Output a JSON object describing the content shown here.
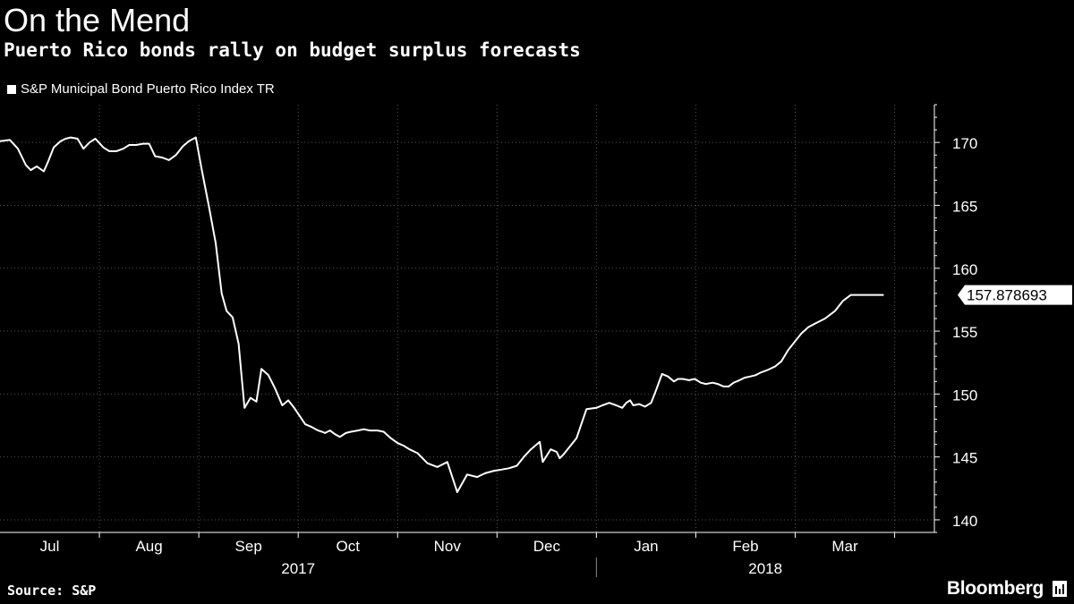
{
  "header": {
    "title": "On the Mend",
    "subtitle": "Puerto Rico bonds rally on budget surplus forecasts"
  },
  "legend": {
    "label": "S&P Municipal Bond Puerto Rico Index TR"
  },
  "footer": {
    "source": "Source: S&P",
    "brand": "Bloomberg",
    "brand_icon": "bloomberg-terminal-icon"
  },
  "colors": {
    "background": "#000000",
    "line": "#ffffff",
    "grid": "#555555",
    "text": "#ffffff"
  },
  "chart_data": {
    "type": "line",
    "title": "On the Mend",
    "subtitle": "Puerto Rico bonds rally on budget surplus forecasts",
    "series_name": "S&P Municipal Bond Puerto Rico Index TR",
    "xlabel": "",
    "ylabel": "",
    "ylim": [
      139,
      173
    ],
    "y_ticks": [
      140,
      145,
      150,
      155,
      160,
      165,
      170
    ],
    "grid": true,
    "x_range": [
      0,
      9.4
    ],
    "month_ticks": [
      {
        "label": "Jul",
        "pos": 0.5
      },
      {
        "label": "Aug",
        "pos": 1.5
      },
      {
        "label": "Sep",
        "pos": 2.5
      },
      {
        "label": "Oct",
        "pos": 3.5
      },
      {
        "label": "Nov",
        "pos": 4.5
      },
      {
        "label": "Dec",
        "pos": 5.5
      },
      {
        "label": "Jan",
        "pos": 6.5
      },
      {
        "label": "Feb",
        "pos": 7.5
      },
      {
        "label": "Mar",
        "pos": 8.5
      }
    ],
    "month_boundaries": [
      1,
      2,
      3,
      4,
      5,
      6,
      7,
      8,
      9
    ],
    "year_labels": [
      {
        "label": "2017",
        "pos": 3.0
      },
      {
        "label": "2018",
        "pos": 7.7
      }
    ],
    "year_divider": 6,
    "last_value_label": "157.878693",
    "x": [
      0.0,
      0.1,
      0.18,
      0.26,
      0.31,
      0.37,
      0.44,
      0.48,
      0.54,
      0.61,
      0.66,
      0.71,
      0.78,
      0.84,
      0.9,
      0.96,
      1.04,
      1.1,
      1.17,
      1.24,
      1.3,
      1.37,
      1.44,
      1.5,
      1.56,
      1.63,
      1.7,
      1.77,
      1.84,
      1.9,
      1.97,
      2.03,
      2.1,
      2.17,
      2.23,
      2.28,
      2.34,
      2.4,
      2.46,
      2.52,
      2.58,
      2.63,
      2.7,
      2.77,
      2.84,
      2.9,
      2.96,
      3.02,
      3.07,
      3.13,
      3.2,
      3.24,
      3.27,
      3.32,
      3.37,
      3.42,
      3.48,
      3.53,
      3.6,
      3.66,
      3.72,
      3.8,
      3.86,
      3.93,
      4.0,
      4.06,
      4.12,
      4.2,
      4.3,
      4.4,
      4.5,
      4.6,
      4.7,
      4.8,
      4.88,
      4.97,
      5.05,
      5.12,
      5.2,
      5.27,
      5.34,
      5.4,
      5.43,
      5.46,
      5.54,
      5.6,
      5.63,
      5.67,
      5.73,
      5.8,
      5.9,
      6.0,
      6.06,
      6.13,
      6.2,
      6.26,
      6.3,
      6.34,
      6.37,
      6.43,
      6.49,
      6.55,
      6.6,
      6.66,
      6.72,
      6.78,
      6.82,
      6.87,
      6.93,
      6.99,
      7.05,
      7.1,
      7.17,
      7.22,
      7.28,
      7.33,
      7.38,
      7.44,
      7.49,
      7.55,
      7.6,
      7.65,
      7.72,
      7.8,
      7.86,
      7.93,
      8.0,
      8.06,
      8.13,
      8.2,
      8.3,
      8.4,
      8.48,
      8.56,
      8.63,
      8.7,
      8.74,
      8.77,
      8.81,
      8.86,
      8.89
    ],
    "values": [
      170.1,
      170.2,
      169.5,
      168.2,
      167.8,
      168.1,
      167.7,
      168.4,
      169.6,
      170.1,
      170.3,
      170.4,
      170.3,
      169.5,
      170.0,
      170.3,
      169.6,
      169.3,
      169.3,
      169.5,
      169.8,
      169.8,
      169.9,
      169.9,
      168.9,
      168.8,
      168.6,
      169.0,
      169.7,
      170.1,
      170.4,
      167.8,
      165.0,
      162.0,
      158.0,
      156.6,
      156.1,
      154.0,
      148.9,
      149.7,
      149.4,
      152.0,
      151.5,
      150.4,
      149.1,
      149.5,
      148.9,
      148.2,
      147.6,
      147.4,
      147.1,
      147.0,
      146.9,
      147.1,
      146.8,
      146.6,
      146.9,
      147.0,
      147.1,
      147.2,
      147.1,
      147.1,
      147.0,
      146.5,
      146.1,
      145.9,
      145.6,
      145.3,
      144.5,
      144.2,
      144.6,
      142.2,
      143.6,
      143.4,
      143.7,
      143.9,
      144.0,
      144.1,
      144.3,
      145.0,
      145.6,
      146.0,
      146.2,
      144.6,
      145.6,
      145.4,
      144.9,
      145.2,
      145.8,
      146.5,
      148.8,
      148.9,
      149.1,
      149.3,
      149.1,
      148.9,
      149.3,
      149.5,
      149.1,
      149.2,
      149.0,
      149.3,
      150.3,
      151.6,
      151.4,
      151.0,
      151.2,
      151.2,
      151.1,
      151.2,
      150.9,
      150.8,
      150.9,
      150.8,
      150.6,
      150.6,
      150.9,
      151.1,
      151.3,
      151.4,
      151.5,
      151.7,
      151.9,
      152.2,
      152.6,
      153.5,
      154.2,
      154.8,
      155.3,
      155.6,
      156.0,
      156.6,
      157.4,
      157.88,
      157.88,
      157.88,
      157.88,
      157.88,
      157.88,
      157.88,
      157.88
    ]
  }
}
